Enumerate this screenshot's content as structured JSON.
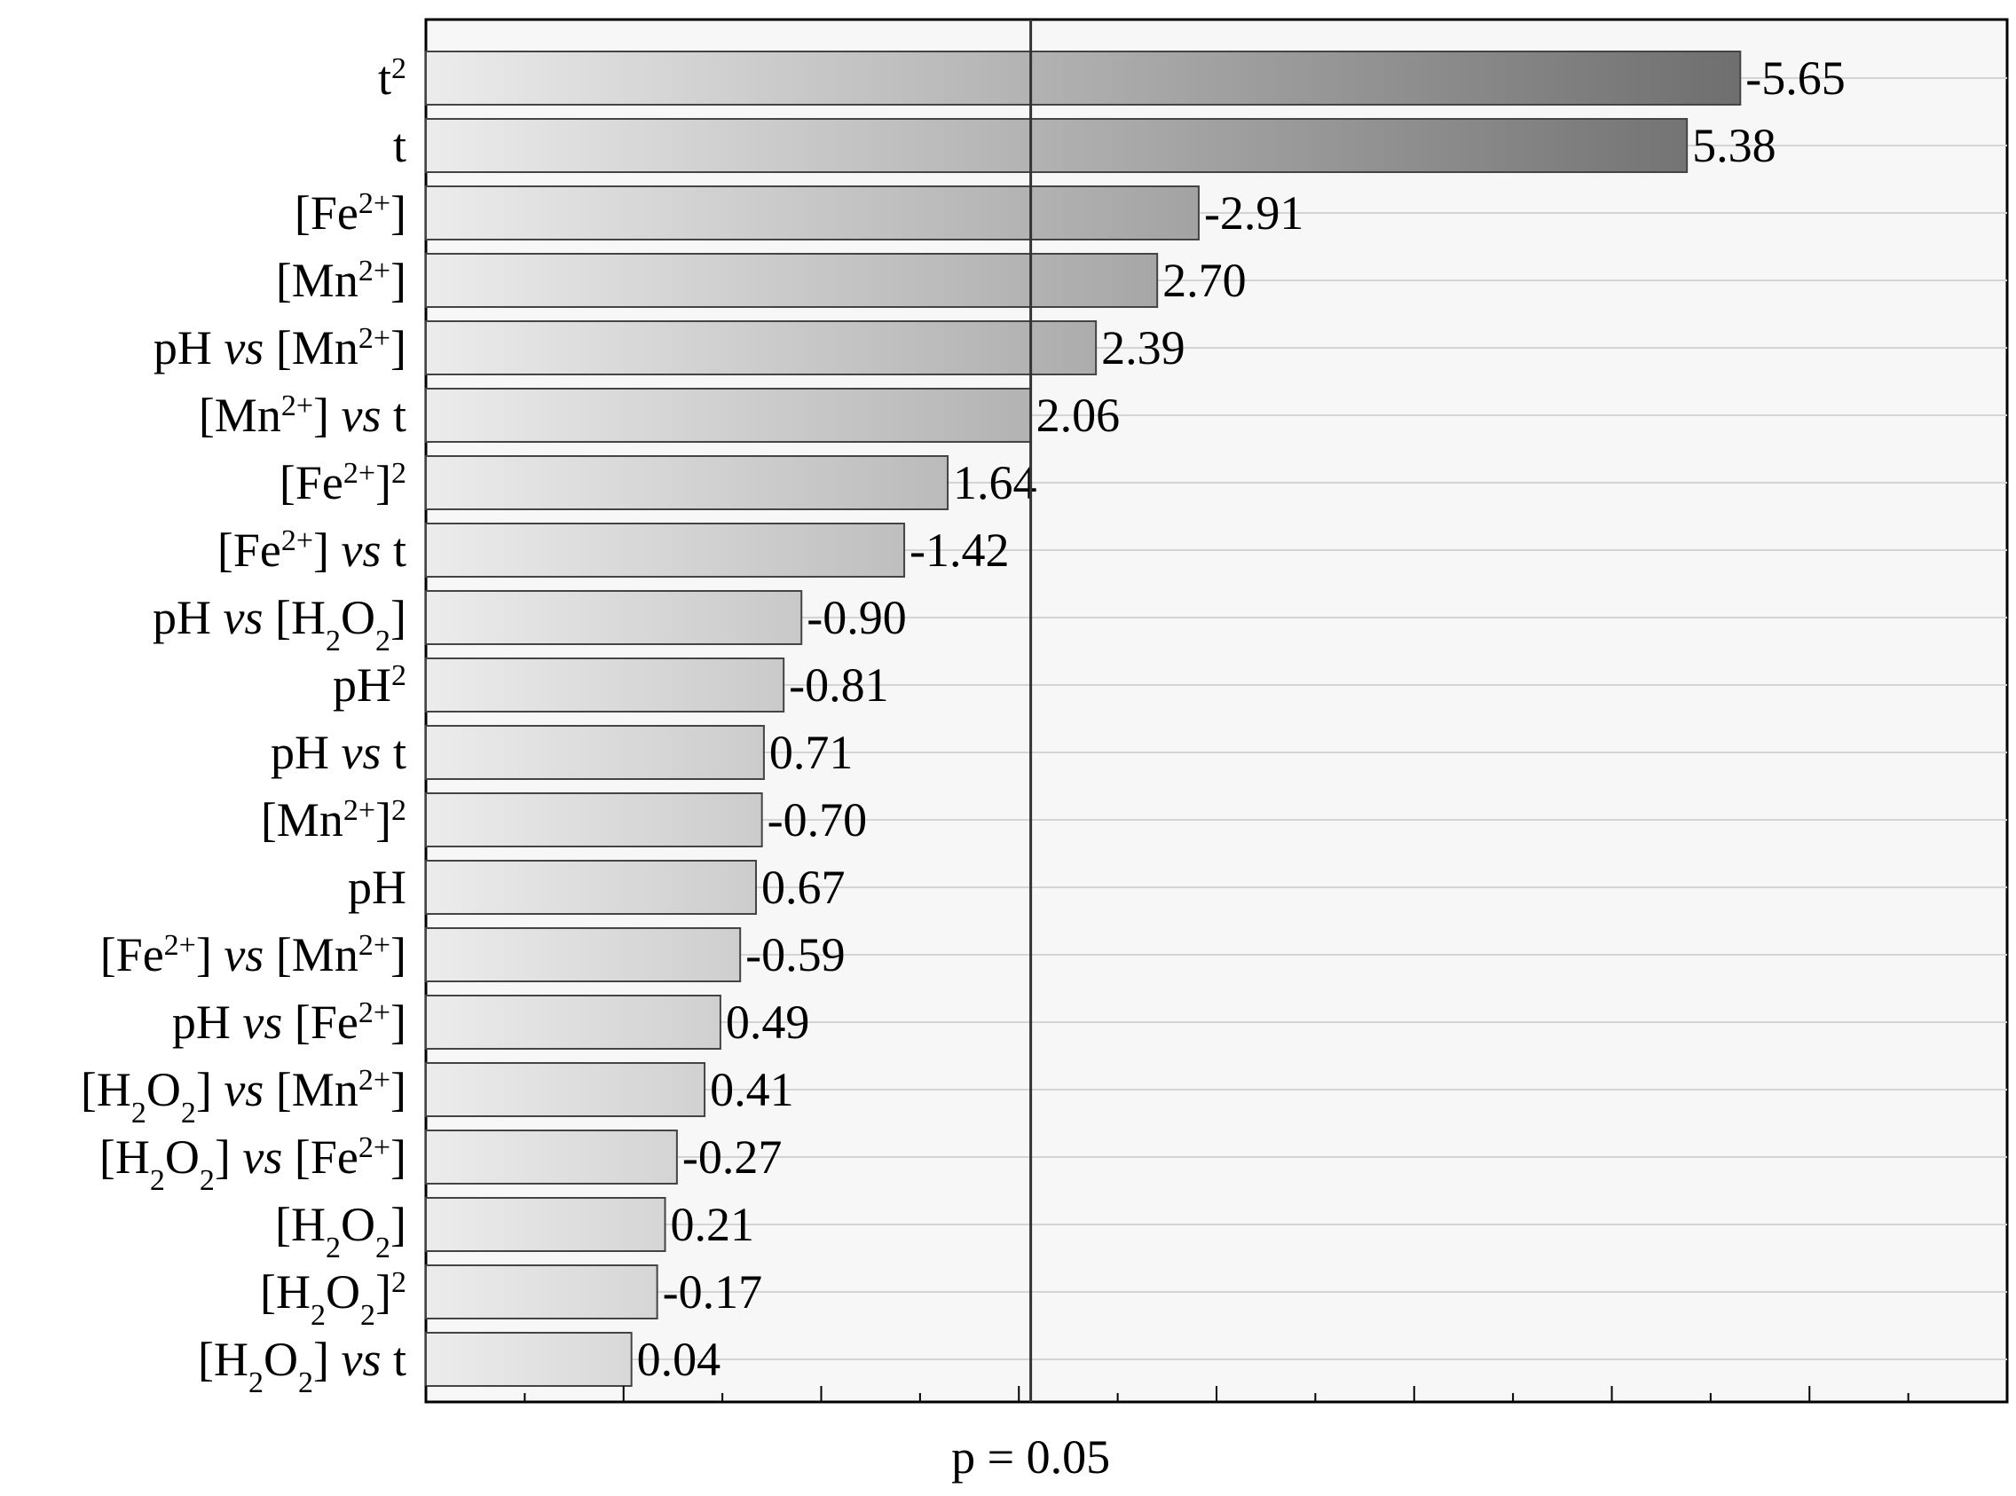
{
  "chart_data": {
    "type": "bar",
    "orientation": "horizontal",
    "categories": [
      "t²",
      "t",
      "[Fe²⁺]",
      "[Mn²⁺]",
      "pH vs [Mn²⁺]",
      "[Mn²⁺] vs t",
      "[Fe²⁺]²",
      "[Fe²⁺] vs t",
      "pH vs [H₂O₂]",
      "pH²",
      "pH vs t",
      "[Mn²⁺]²",
      "pH",
      "[Fe²⁺] vs [Mn²⁺]",
      "pH vs [Fe²⁺]",
      "[H₂O₂] vs [Mn²⁺]",
      "[H₂O₂] vs [Fe²⁺]",
      "[H₂O₂]",
      "[H₂O₂]²",
      "[H₂O₂] vs t"
    ],
    "values": [
      -5.65,
      5.38,
      -2.91,
      2.7,
      2.39,
      2.06,
      1.64,
      -1.42,
      -0.9,
      -0.81,
      0.71,
      -0.7,
      0.67,
      -0.59,
      0.49,
      0.41,
      -0.27,
      0.21,
      -0.17,
      0.04
    ],
    "value_labels": [
      "-5.65",
      "5.38",
      "-2.91",
      "2.70",
      "2.39",
      "2.06",
      "1.64",
      "-1.42",
      "-0.90",
      "-0.81",
      "0.71",
      "-0.70",
      "0.67",
      "-0.59",
      "0.49",
      "0.41",
      "-0.27",
      "0.21",
      "-0.17",
      "0.04"
    ],
    "reference_line": {
      "value": 2.06,
      "label": "p = 0.05"
    },
    "xlabel": "p = 0.05",
    "xlim": [
      -1.0,
      7.0
    ],
    "grid": true,
    "title": "",
    "colors": {
      "bar_light": "#ececec",
      "bar_dark": "#6e6e6e",
      "plot_bg": "#f7f7f7",
      "grid": "#d4d4d4"
    }
  }
}
